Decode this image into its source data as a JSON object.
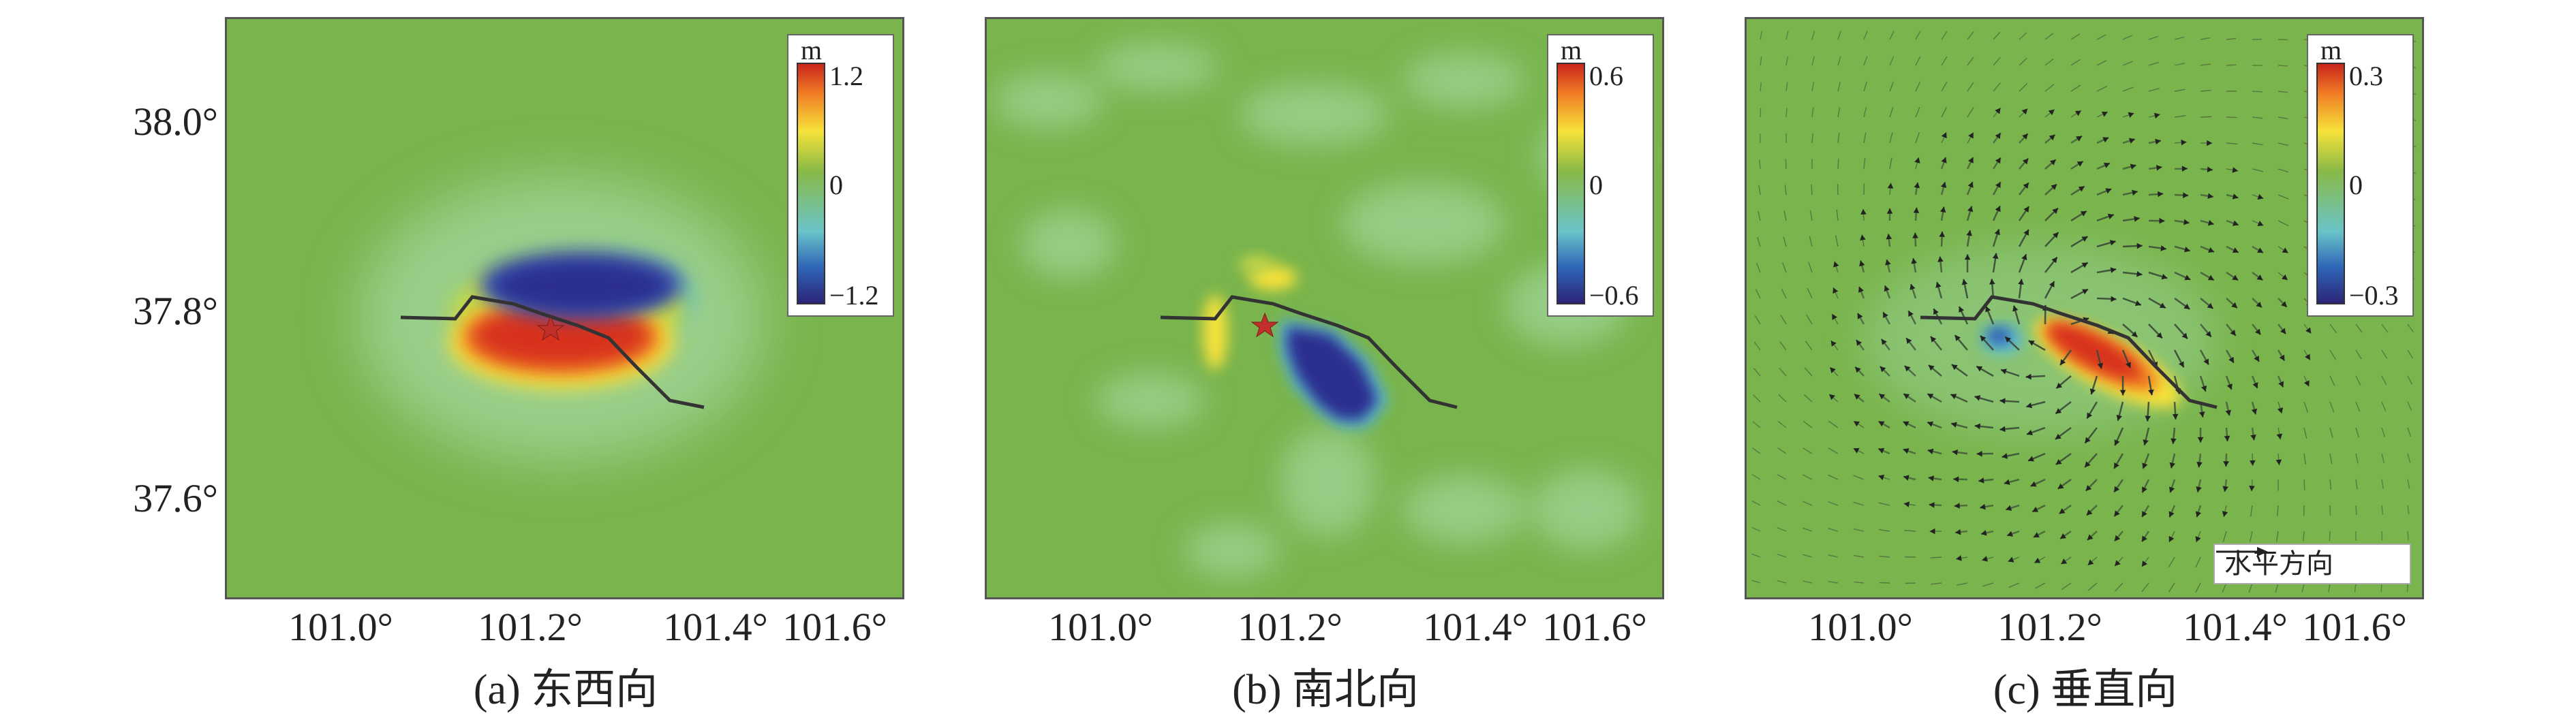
{
  "figure": {
    "panels": [
      {
        "id": "a",
        "caption": "(a) 东西向",
        "colorbar": {
          "unit": "m",
          "max": "1.2",
          "mid": "0",
          "min": "−1.2"
        },
        "field": "east-west displacement"
      },
      {
        "id": "b",
        "caption": "(b) 南北向",
        "colorbar": {
          "unit": "m",
          "max": "0.6",
          "mid": "0",
          "min": "−0.6"
        },
        "field": "north-south displacement"
      },
      {
        "id": "c",
        "caption": "(c) 垂直向",
        "colorbar": {
          "unit": "m",
          "max": "0.3",
          "mid": "0",
          "min": "−0.3"
        },
        "horizontal_legend": "水平方向",
        "field": "vertical displacement"
      }
    ],
    "y_ticks": [
      "38.0°",
      "37.8°",
      "37.6°"
    ],
    "x_ticks": [
      "101.0°",
      "101.2°",
      "101.4°",
      "101.6°"
    ],
    "colors": {
      "background_green": "#79b44c",
      "positive_red": "#d8301f",
      "negative_blue": "#2b2f8f",
      "yellow": "#f5e13a",
      "cyan": "#5bbfd2",
      "fault_line": "#333333",
      "epicenter": "#c0302a"
    },
    "icons": {
      "epicenter": "star-icon",
      "fault": "fault-trace",
      "vectors": "arrow-icon"
    }
  }
}
